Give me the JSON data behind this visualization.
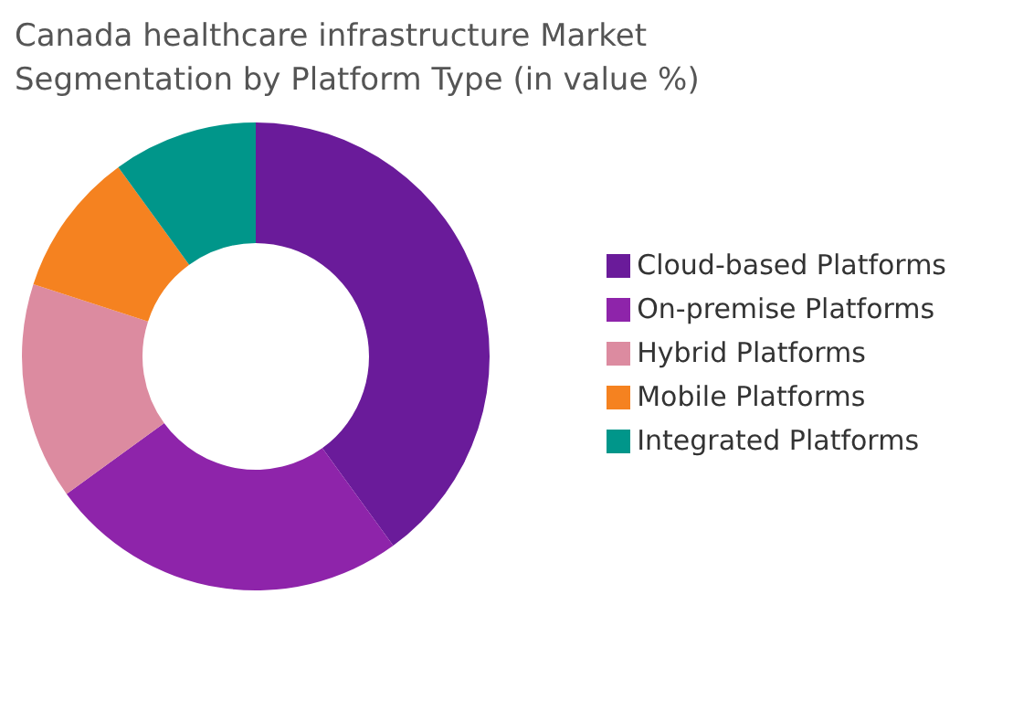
{
  "chart_data": {
    "type": "donut",
    "title": "Canada healthcare infrastructure Market Segmentation by Platform Type (in value %)",
    "categories": [
      "Cloud-based Platforms",
      "On-premise Platforms",
      "Hybrid Platforms",
      "Mobile Platforms",
      "Integrated Platforms"
    ],
    "values": [
      40,
      25,
      15,
      10,
      10
    ],
    "colors": [
      "#6a1b9a",
      "#8e24aa",
      "#dc8ba0",
      "#f58220",
      "#00968a"
    ],
    "legend": "right"
  }
}
